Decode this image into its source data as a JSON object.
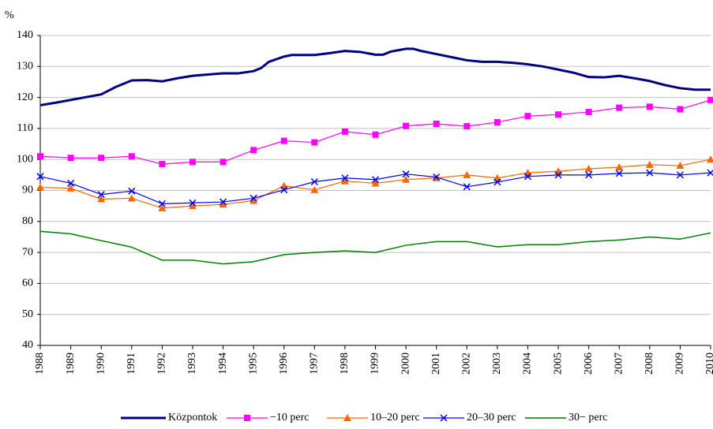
{
  "chart_data": {
    "type": "line",
    "y_label": "%",
    "x": [
      1988,
      1989,
      1990,
      1991,
      1992,
      1993,
      1994,
      1995,
      1996,
      1997,
      1998,
      1999,
      2000,
      2001,
      2002,
      2003,
      2004,
      2005,
      2006,
      2007,
      2008,
      2009,
      2010
    ],
    "xlim": [
      1988,
      2010
    ],
    "xticks": [
      1988,
      1989,
      1990,
      1991,
      1992,
      1993,
      1994,
      1995,
      1996,
      1997,
      1998,
      1999,
      2000,
      2001,
      2002,
      2003,
      2004,
      2005,
      2006,
      2007,
      2008,
      2009,
      2010
    ],
    "ylim": [
      40,
      140
    ],
    "yticks": [
      40,
      50,
      60,
      70,
      80,
      90,
      100,
      110,
      120,
      130,
      140
    ],
    "grid": true,
    "series": [
      {
        "name": "Központok",
        "color": "#000080",
        "marker": "none",
        "width": 3,
        "x": [
          1988,
          1988.5,
          1989,
          1989.5,
          1990,
          1990.5,
          1991,
          1991.5,
          1992,
          1992.5,
          1993,
          1993.5,
          1994,
          1994.5,
          1995,
          1995.25,
          1995.5,
          1996,
          1996.25,
          1996.5,
          1997,
          1997.5,
          1998,
          1998.5,
          1999,
          1999.25,
          1999.5,
          2000,
          2000.25,
          2000.5,
          2001,
          2001.5,
          2002,
          2002.5,
          2003,
          2003.5,
          2004,
          2004.5,
          2005,
          2005.5,
          2006,
          2006.5,
          2007,
          2007.5,
          2008,
          2008.5,
          2009,
          2009.5,
          2010
        ],
        "values": [
          117.5,
          118.3,
          119.2,
          120.1,
          121,
          123.5,
          125.5,
          125.6,
          125.2,
          126.2,
          127,
          127.4,
          127.8,
          127.8,
          128.5,
          129.5,
          131.5,
          133.2,
          133.7,
          133.7,
          133.7,
          134.3,
          135,
          134.7,
          133.8,
          133.8,
          134.8,
          135.7,
          135.7,
          135,
          134,
          133,
          132,
          131.5,
          131.5,
          131.2,
          130.7,
          130,
          129,
          128,
          126.6,
          126.5,
          127,
          126.2,
          125.3,
          124,
          123,
          122.5,
          122.5
        ]
      },
      {
        "name": "−10 perc",
        "color": "#ff00ff",
        "marker": "square",
        "width": 1.2,
        "values": [
          101,
          100.5,
          100.5,
          101,
          98.5,
          99.2,
          99.2,
          103,
          106,
          105.5,
          109,
          108,
          110.8,
          111.5,
          110.7,
          112,
          114,
          114.5,
          115.3,
          116.7,
          117,
          116.2,
          119.2
        ]
      },
      {
        "name": "10–20 perc",
        "color": "#ff6600",
        "marker": "triangle",
        "width": 1.2,
        "values": [
          91,
          90.7,
          87.2,
          87.5,
          84.3,
          85,
          85.5,
          86.7,
          91.5,
          90.2,
          93,
          92.3,
          93.5,
          94,
          95,
          94,
          95.7,
          96.2,
          97,
          97.5,
          98.3,
          98,
          100
        ]
      },
      {
        "name": "20–30 perc",
        "color": "#0000ff",
        "marker": "x",
        "width": 1.2,
        "values": [
          94.5,
          92.3,
          88.7,
          89.8,
          85.7,
          86,
          86.3,
          87.5,
          90.2,
          92.8,
          94,
          93.5,
          95.3,
          94.3,
          91.2,
          92.7,
          94.5,
          95,
          95,
          95.5,
          95.7,
          95,
          95.7
        ]
      },
      {
        "name": "30− perc",
        "color": "#008000",
        "marker": "none",
        "width": 1.5,
        "values": [
          76.8,
          76,
          73.8,
          71.7,
          67.5,
          67.5,
          66.3,
          67,
          69.3,
          70,
          70.5,
          70,
          72.3,
          73.5,
          73.5,
          71.8,
          72.5,
          72.5,
          73.5,
          74,
          75,
          74.3,
          76.3
        ]
      }
    ]
  }
}
